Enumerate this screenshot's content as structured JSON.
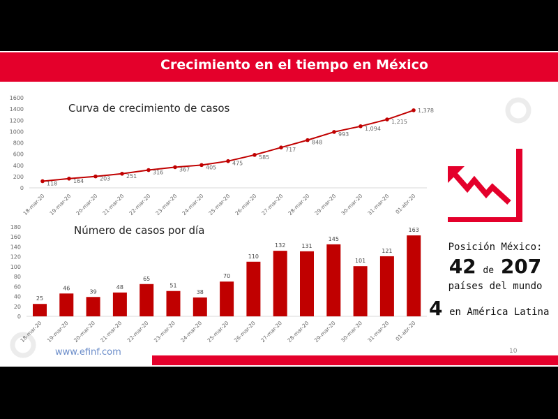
{
  "header": {
    "title": "Crecimiento en el tiempo en México"
  },
  "colors": {
    "accent": "#e4002b",
    "series": "#c00000"
  },
  "chart_data": [
    {
      "type": "line",
      "title": "Curva de crecimiento de casos",
      "categories": [
        "18-mar-20",
        "19-mar-20",
        "20-mar-20",
        "21-mar-20",
        "22-mar-20",
        "23-mar-20",
        "24-mar-20",
        "25-mar-20",
        "26-mar-20",
        "27-mar-20",
        "28-mar-20",
        "29-mar-20",
        "30-mar-20",
        "31-mar-20",
        "01-abr-20"
      ],
      "values": [
        118,
        164,
        203,
        251,
        316,
        367,
        405,
        475,
        585,
        717,
        848,
        993,
        1094,
        1215,
        1378
      ],
      "labels": [
        "118",
        "164",
        "203",
        "251",
        "316",
        "367",
        "405",
        "475",
        "585",
        "717",
        "848",
        "993",
        "1,094",
        "1,215",
        "1,378"
      ],
      "ylim": [
        0,
        1600
      ],
      "yticks": [
        0,
        200,
        400,
        600,
        800,
        1000,
        1200,
        1400,
        1600
      ]
    },
    {
      "type": "bar",
      "title": "Número de casos por día",
      "categories": [
        "18-mar-20",
        "19-mar-20",
        "20-mar-20",
        "21-mar-20",
        "22-mar-20",
        "23-mar-20",
        "24-mar-20",
        "25-mar-20",
        "26-mar-20",
        "27-mar-20",
        "28-mar-20",
        "29-mar-20",
        "30-mar-20",
        "31-mar-20",
        "01-abr-20"
      ],
      "values": [
        25,
        46,
        39,
        48,
        65,
        51,
        38,
        70,
        110,
        132,
        131,
        145,
        101,
        121,
        163
      ],
      "ylim": [
        0,
        180
      ],
      "yticks": [
        0,
        20,
        40,
        60,
        80,
        100,
        120,
        140,
        160,
        180
      ]
    }
  ],
  "position": {
    "label": "Posición México:",
    "rank": "42",
    "of": "de",
    "total": "207",
    "world": "países del mundo",
    "latam_rank": "4",
    "latam": "en América Latina"
  },
  "footer": {
    "link": "www.efinf.com",
    "page": "10"
  }
}
